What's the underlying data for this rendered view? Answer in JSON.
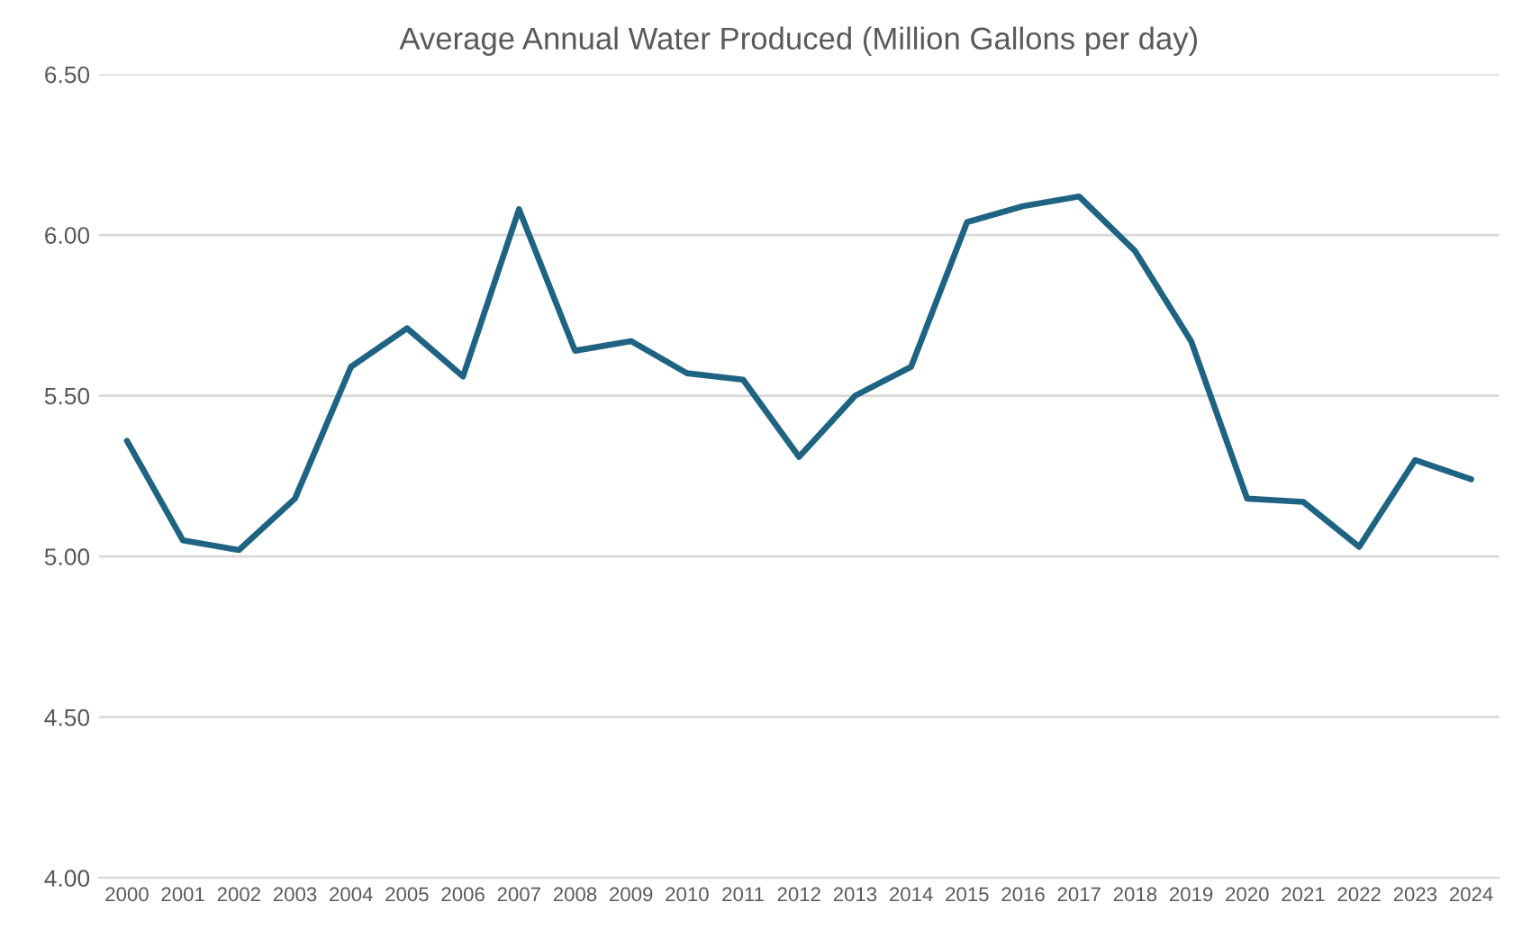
{
  "chart_data": {
    "type": "line",
    "title": "Average Annual Water Produced (Million Gallons per day)",
    "categories": [
      "2000",
      "2001",
      "2002",
      "2003",
      "2004",
      "2005",
      "2006",
      "2007",
      "2008",
      "2009",
      "2010",
      "2011",
      "2012",
      "2013",
      "2014",
      "2015",
      "2016",
      "2017",
      "2018",
      "2019",
      "2020",
      "2021",
      "2022",
      "2023",
      "2024"
    ],
    "series": [
      {
        "color": "#1f6382",
        "values": [
          5.36,
          5.05,
          5.02,
          5.18,
          5.59,
          5.71,
          5.56,
          6.08,
          5.64,
          5.67,
          5.57,
          5.55,
          5.31,
          5.5,
          5.59,
          6.04,
          6.09,
          6.12,
          5.95,
          5.67,
          5.18,
          5.17,
          5.03,
          5.3,
          5.24
        ]
      }
    ],
    "ylim": [
      4.0,
      6.5
    ],
    "yticks": [
      {
        "value": 4.0,
        "label": "4.00"
      },
      {
        "value": 4.5,
        "label": "4.50"
      },
      {
        "value": 5.0,
        "label": "5.00"
      },
      {
        "value": 5.5,
        "label": "5.50"
      },
      {
        "value": 6.0,
        "label": "6.00"
      },
      {
        "value": 6.5,
        "label": "6.50"
      }
    ],
    "grid": "y",
    "legend": false,
    "marker": "none",
    "line_style": "solid"
  }
}
